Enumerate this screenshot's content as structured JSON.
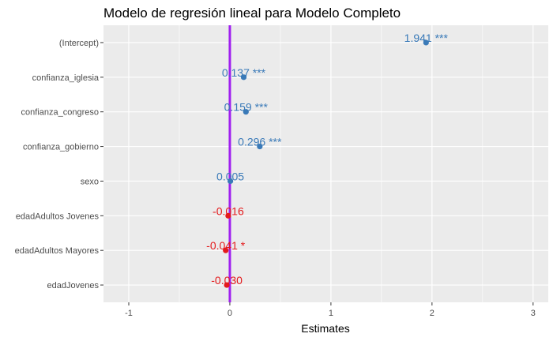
{
  "chart_data": {
    "type": "scatter",
    "title": "Modelo de regresión lineal para Modelo Completo",
    "xlabel": "Estimates",
    "ylabel": "",
    "xlim": [
      -1.25,
      3.15
    ],
    "x_ticks": [
      -1,
      0,
      1,
      2,
      3
    ],
    "x_tick_labels": [
      "-1",
      "0",
      "1",
      "2",
      "3"
    ],
    "grid": true,
    "reference_line": {
      "x": 0,
      "color": "#a020f0"
    },
    "colors": {
      "positive": "#3a7ab8",
      "negative": "#e41a1c",
      "panel": "#ebebeb",
      "grid": "#ffffff"
    },
    "terms": [
      {
        "name": "(Intercept)",
        "estimate": 1.941,
        "label": "1.941 ***"
      },
      {
        "name": "confianza_iglesia",
        "estimate": 0.137,
        "label": "0.137 ***"
      },
      {
        "name": "confianza_congreso",
        "estimate": 0.159,
        "label": "0.159 ***"
      },
      {
        "name": "confianza_gobierno",
        "estimate": 0.296,
        "label": "0.296 ***"
      },
      {
        "name": "sexo",
        "estimate": 0.005,
        "label": "0.005"
      },
      {
        "name": "edadAdultos Jovenes",
        "estimate": -0.016,
        "label": "-0.016"
      },
      {
        "name": "edadAdultos Mayores",
        "estimate": -0.041,
        "label": "-0.041 *"
      },
      {
        "name": "edadJovenes",
        "estimate": -0.03,
        "label": "-0.030"
      }
    ]
  }
}
